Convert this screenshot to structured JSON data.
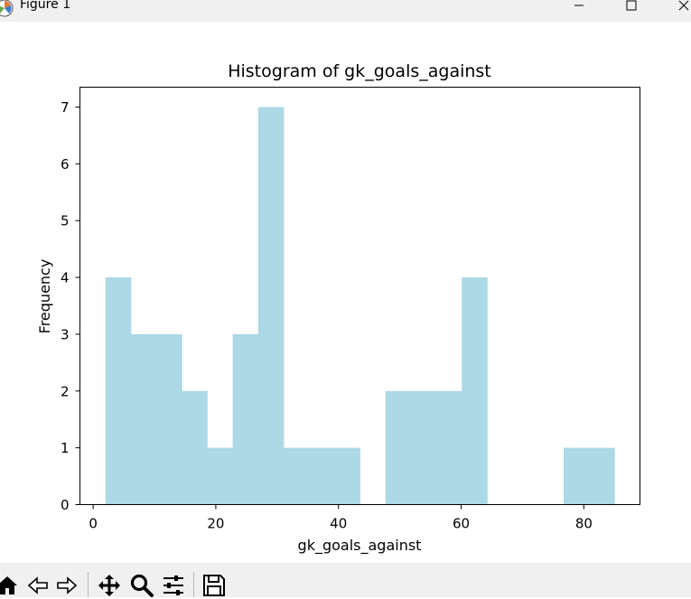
{
  "window": {
    "title": "Figure 1",
    "minimize_icon": "minimize-icon",
    "maximize_icon": "maximize-icon",
    "close_icon": "close-icon"
  },
  "toolbar": {
    "buttons": [
      "home-icon",
      "back-icon",
      "forward-icon",
      "pan-icon",
      "zoom-icon",
      "configure-subplots-icon",
      "save-icon"
    ]
  },
  "chart_data": {
    "type": "bar",
    "title": "Histogram of gk_goals_against",
    "xlabel": "gk_goals_against",
    "ylabel": "Frequency",
    "bar_color": "#add8e6",
    "bins": [
      {
        "start": 2.0,
        "end": 6.15,
        "count": 4
      },
      {
        "start": 6.15,
        "end": 10.3,
        "count": 3
      },
      {
        "start": 10.3,
        "end": 14.45,
        "count": 3
      },
      {
        "start": 14.45,
        "end": 18.6,
        "count": 2
      },
      {
        "start": 18.6,
        "end": 22.75,
        "count": 1
      },
      {
        "start": 22.75,
        "end": 26.9,
        "count": 3
      },
      {
        "start": 26.9,
        "end": 31.05,
        "count": 7
      },
      {
        "start": 31.05,
        "end": 35.2,
        "count": 1
      },
      {
        "start": 35.2,
        "end": 39.35,
        "count": 1
      },
      {
        "start": 39.35,
        "end": 43.5,
        "count": 1
      },
      {
        "start": 43.5,
        "end": 47.65,
        "count": 0
      },
      {
        "start": 47.65,
        "end": 51.8,
        "count": 2
      },
      {
        "start": 51.8,
        "end": 55.95,
        "count": 2
      },
      {
        "start": 55.95,
        "end": 60.1,
        "count": 2
      },
      {
        "start": 60.1,
        "end": 64.25,
        "count": 4
      },
      {
        "start": 64.25,
        "end": 68.4,
        "count": 0
      },
      {
        "start": 68.4,
        "end": 72.55,
        "count": 0
      },
      {
        "start": 72.55,
        "end": 76.7,
        "count": 0
      },
      {
        "start": 76.7,
        "end": 80.85,
        "count": 1
      },
      {
        "start": 80.85,
        "end": 85.0,
        "count": 1
      }
    ],
    "xlim": [
      -2.15,
      89.15
    ],
    "ylim": [
      0,
      7.35
    ],
    "xticks": [
      0,
      20,
      40,
      60,
      80
    ],
    "yticks": [
      0,
      1,
      2,
      3,
      4,
      5,
      6,
      7
    ],
    "grid": false
  }
}
